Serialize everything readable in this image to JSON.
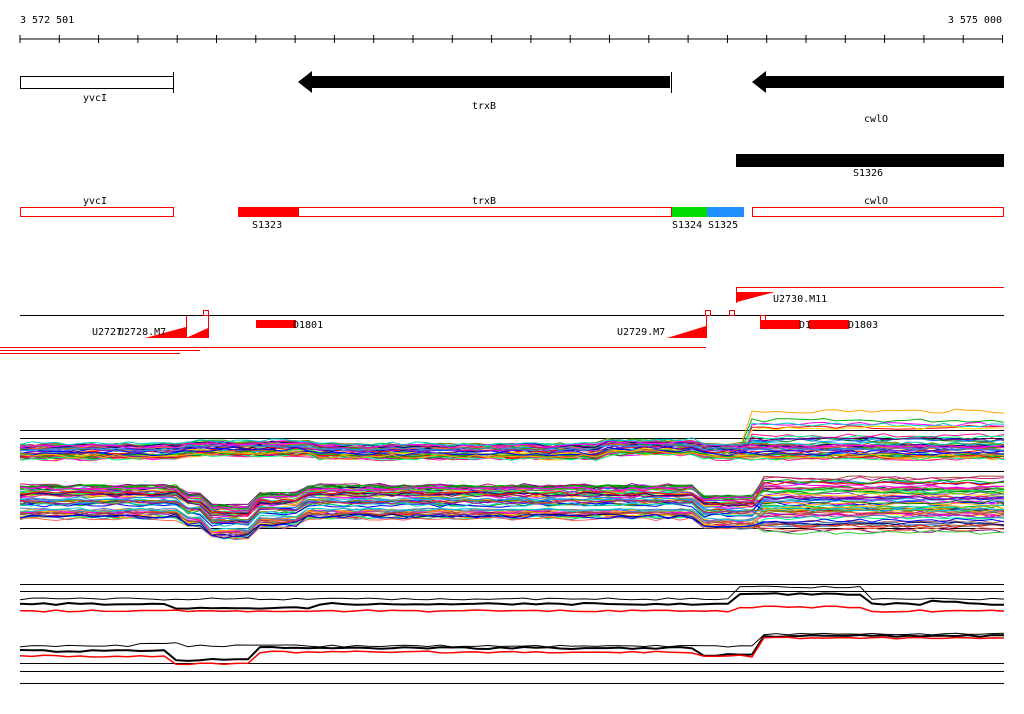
{
  "ruler": {
    "start_label": "3 572 501",
    "end_label": "3 575 000"
  },
  "annotation_track": {
    "genes": [
      {
        "name": "yvcI",
        "style": "outline"
      },
      {
        "name": "trxB",
        "style": "arrow"
      },
      {
        "name": "cwlO",
        "style": "arrow"
      }
    ],
    "segments": [
      {
        "name": "S1326"
      }
    ]
  },
  "segmentation_track": {
    "genes": [
      {
        "name": "yvcI"
      },
      {
        "name": "trxB"
      },
      {
        "name": "cwlO"
      }
    ],
    "segments": [
      {
        "name": "S1323",
        "color": "#ff0000"
      },
      {
        "name": "S1324",
        "color": "#00dd00"
      },
      {
        "name": "S1325",
        "color": "#1e90ff"
      }
    ]
  },
  "features_track": {
    "labels": [
      {
        "name": "U2730.M11"
      },
      {
        "name": "U2727"
      },
      {
        "name": "U2728.M7"
      },
      {
        "name": "D1801"
      },
      {
        "name": "U2729.M7"
      },
      {
        "name": "D1"
      },
      {
        "name": "D1803"
      }
    ]
  },
  "colors": {
    "feature_red": "#ff0000",
    "line_black": "#000000"
  }
}
